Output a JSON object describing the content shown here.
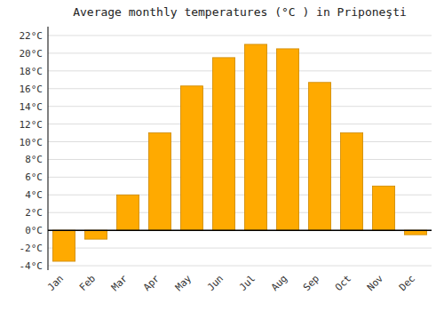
{
  "chart_data": {
    "type": "bar",
    "title": "Average monthly temperatures (°C ) in Priponeşti",
    "categories": [
      "Jan",
      "Feb",
      "Mar",
      "Apr",
      "May",
      "Jun",
      "Jul",
      "Aug",
      "Sep",
      "Oct",
      "Nov",
      "Dec"
    ],
    "values": [
      -3.5,
      -1.0,
      4.0,
      11.0,
      16.3,
      19.5,
      21.0,
      20.5,
      16.7,
      11.0,
      5.0,
      -0.5
    ],
    "color": "#FFAA00",
    "ylim": [
      -4.5,
      23
    ],
    "yticks": [
      {
        "value": -4,
        "label": "-4°C"
      },
      {
        "value": -2,
        "label": "-2°C"
      },
      {
        "value": 0,
        "label": "0°C"
      },
      {
        "value": 2,
        "label": "2°C"
      },
      {
        "value": 4,
        "label": "4°C"
      },
      {
        "value": 6,
        "label": "6°C"
      },
      {
        "value": 8,
        "label": "8°C"
      },
      {
        "value": 10,
        "label": "10°C"
      },
      {
        "value": 12,
        "label": "12°C"
      },
      {
        "value": 14,
        "label": "14°C"
      },
      {
        "value": 16,
        "label": "16°C"
      },
      {
        "value": 18,
        "label": "18°C"
      },
      {
        "value": 20,
        "label": "20°C"
      },
      {
        "value": 22,
        "label": "22°C"
      }
    ],
    "grid": true
  }
}
